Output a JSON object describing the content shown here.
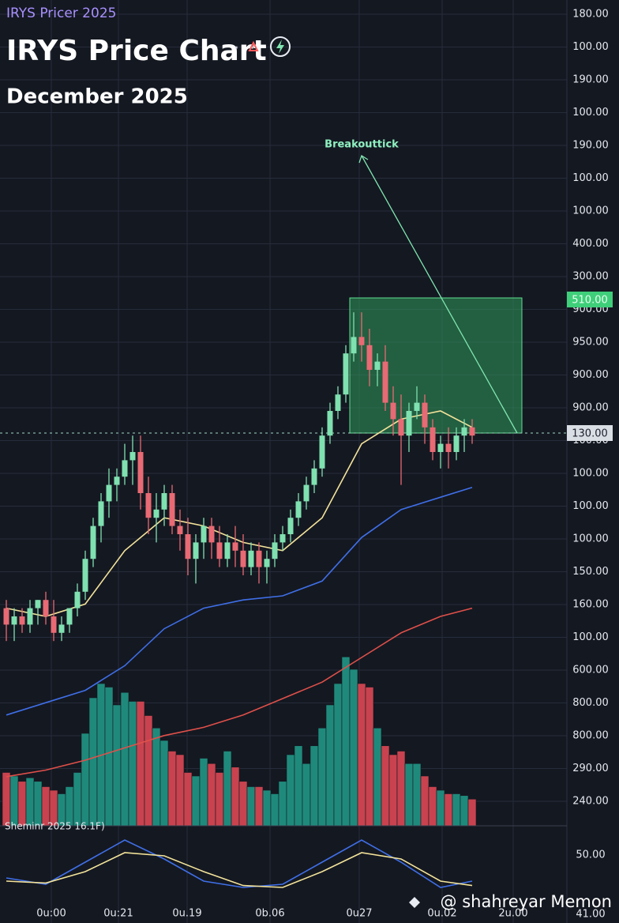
{
  "header": {
    "subtitle": "IRYS Pricer 2025",
    "title": "IRYS Price Chart",
    "date": "December 2025"
  },
  "chart_data": {
    "type": "candlestick",
    "ylim": [
      0,
      100
    ],
    "up_color": "#7fe0b0",
    "down_color": "#e86a74",
    "ohlc": [
      [
        26,
        27,
        22,
        24
      ],
      [
        24,
        26,
        22,
        25
      ],
      [
        25,
        26,
        23,
        24
      ],
      [
        24,
        27,
        23,
        26
      ],
      [
        26,
        27,
        24,
        27
      ],
      [
        27,
        28,
        24,
        25
      ],
      [
        25,
        27,
        22,
        23
      ],
      [
        23,
        25,
        22,
        24
      ],
      [
        24,
        26,
        23,
        26
      ],
      [
        26,
        29,
        25,
        28
      ],
      [
        28,
        33,
        27,
        32
      ],
      [
        32,
        37,
        31,
        36
      ],
      [
        36,
        40,
        34,
        39
      ],
      [
        39,
        43,
        37,
        41
      ],
      [
        41,
        43,
        39,
        42
      ],
      [
        42,
        46,
        41,
        44
      ],
      [
        44,
        47,
        41,
        45
      ],
      [
        45,
        47,
        38,
        40
      ],
      [
        40,
        42,
        35,
        37
      ],
      [
        37,
        40,
        34,
        38
      ],
      [
        38,
        41,
        36,
        40
      ],
      [
        40,
        41,
        35,
        36
      ],
      [
        36,
        38,
        33,
        35
      ],
      [
        35,
        37,
        30,
        32
      ],
      [
        32,
        35,
        29,
        34
      ],
      [
        34,
        37,
        32,
        36
      ],
      [
        36,
        37,
        32,
        34
      ],
      [
        34,
        36,
        31,
        32
      ],
      [
        32,
        35,
        31,
        34
      ],
      [
        34,
        36,
        31,
        33
      ],
      [
        33,
        35,
        30,
        31
      ],
      [
        31,
        34,
        30,
        33
      ],
      [
        33,
        34,
        29,
        31
      ],
      [
        31,
        33,
        29,
        32
      ],
      [
        32,
        35,
        31,
        34
      ],
      [
        34,
        36,
        33,
        35
      ],
      [
        35,
        38,
        34,
        37
      ],
      [
        37,
        40,
        36,
        39
      ],
      [
        39,
        42,
        38,
        41
      ],
      [
        41,
        44,
        40,
        43
      ],
      [
        43,
        48,
        42,
        47
      ],
      [
        47,
        51,
        46,
        50
      ],
      [
        50,
        53,
        49,
        52
      ],
      [
        52,
        58,
        51,
        57
      ],
      [
        57,
        62,
        56,
        59
      ],
      [
        59,
        62,
        56,
        58
      ],
      [
        58,
        60,
        53,
        55
      ],
      [
        55,
        57,
        53,
        56
      ],
      [
        56,
        58,
        50,
        51
      ],
      [
        51,
        53,
        47,
        49
      ],
      [
        49,
        52,
        41,
        47
      ],
      [
        47,
        51,
        45,
        50
      ],
      [
        50,
        53,
        49,
        51
      ],
      [
        51,
        52,
        46,
        48
      ],
      [
        48,
        49,
        44,
        45
      ],
      [
        45,
        47,
        43,
        46
      ],
      [
        46,
        48,
        43,
        45
      ],
      [
        45,
        48,
        44,
        47
      ],
      [
        47,
        49,
        45,
        48
      ],
      [
        48,
        49,
        46,
        47
      ]
    ],
    "moving_averages": [
      {
        "color": "#f3e39a",
        "x": [
          0,
          5,
          10,
          15,
          20,
          25,
          30,
          35,
          40,
          45,
          50,
          55,
          59
        ],
        "values": [
          26,
          25,
          26.5,
          33,
          37,
          36,
          34,
          33,
          37,
          46,
          49,
          50,
          48
        ]
      },
      {
        "color": "#3f6fe8",
        "x": [
          0,
          5,
          10,
          15,
          20,
          25,
          30,
          35,
          40,
          45,
          50,
          55,
          59
        ],
        "values": [
          13,
          14.5,
          16,
          19,
          23.5,
          26,
          27,
          27.5,
          29.3,
          34.6,
          38,
          39.5,
          40.7
        ]
      },
      {
        "color": "#e0504a",
        "x": [
          0,
          5,
          10,
          15,
          20,
          25,
          30,
          35,
          40,
          45,
          50,
          55,
          59
        ],
        "values": [
          5.5,
          6.3,
          7.5,
          9,
          10.5,
          11.5,
          13,
          15,
          17,
          20,
          23,
          25,
          26
        ]
      }
    ],
    "volume": {
      "ylim": [
        0,
        100
      ],
      "up_color": "#1f8a7c",
      "down_color": "#c8434f",
      "values": [
        30,
        28,
        25,
        27,
        25,
        22,
        20,
        18,
        22,
        30,
        52,
        72,
        80,
        78,
        68,
        75,
        70,
        70,
        62,
        55,
        48,
        42,
        40,
        30,
        28,
        38,
        35,
        30,
        42,
        33,
        25,
        22,
        22,
        20,
        18,
        25,
        40,
        45,
        35,
        45,
        55,
        68,
        80,
        95,
        88,
        80,
        78,
        55,
        45,
        40,
        42,
        35,
        35,
        28,
        22,
        20,
        18,
        18,
        17,
        15
      ]
    },
    "annotation": "Breakouttick",
    "price_axis_labels": [
      "180.00",
      "100.00",
      "190.00",
      "100.00",
      "190.00",
      "100.00",
      "100.00",
      "400.00",
      "300.00",
      "900.00",
      "950.00",
      "900.00",
      "900.00",
      "100.00",
      "100.00",
      "100.00",
      "100.00",
      "150.00",
      "160.00",
      "100.00",
      "600.00",
      "800.00",
      "800.00",
      "290.00",
      "240.00"
    ],
    "price_tags": {
      "zone_top": "510.00",
      "last": "130.00"
    },
    "time_labels": [
      "0u:00",
      "0u:21",
      "0u.19",
      "0b.06",
      "0u27",
      "0u.02",
      "2u.00"
    ],
    "oscillator": {
      "label": "Sheminr 2025 16.1F)",
      "ylim": [
        0,
        100
      ],
      "axis_labels": [
        "50.00",
        "41.00"
      ],
      "series": [
        {
          "color": "#3f6fe8",
          "x": [
            0,
            5,
            10,
            15,
            20,
            25,
            30,
            35,
            40,
            45,
            50,
            55,
            59
          ],
          "values": [
            30,
            20,
            55,
            90,
            60,
            25,
            15,
            20,
            55,
            90,
            55,
            15,
            25
          ]
        },
        {
          "color": "#f3e39a",
          "x": [
            0,
            5,
            10,
            15,
            20,
            25,
            30,
            35,
            40,
            45,
            50,
            55,
            59
          ],
          "values": [
            25,
            22,
            40,
            70,
            65,
            40,
            18,
            15,
            40,
            70,
            60,
            25,
            18
          ]
        }
      ]
    }
  },
  "watermark": "@ shahreyar Memon"
}
